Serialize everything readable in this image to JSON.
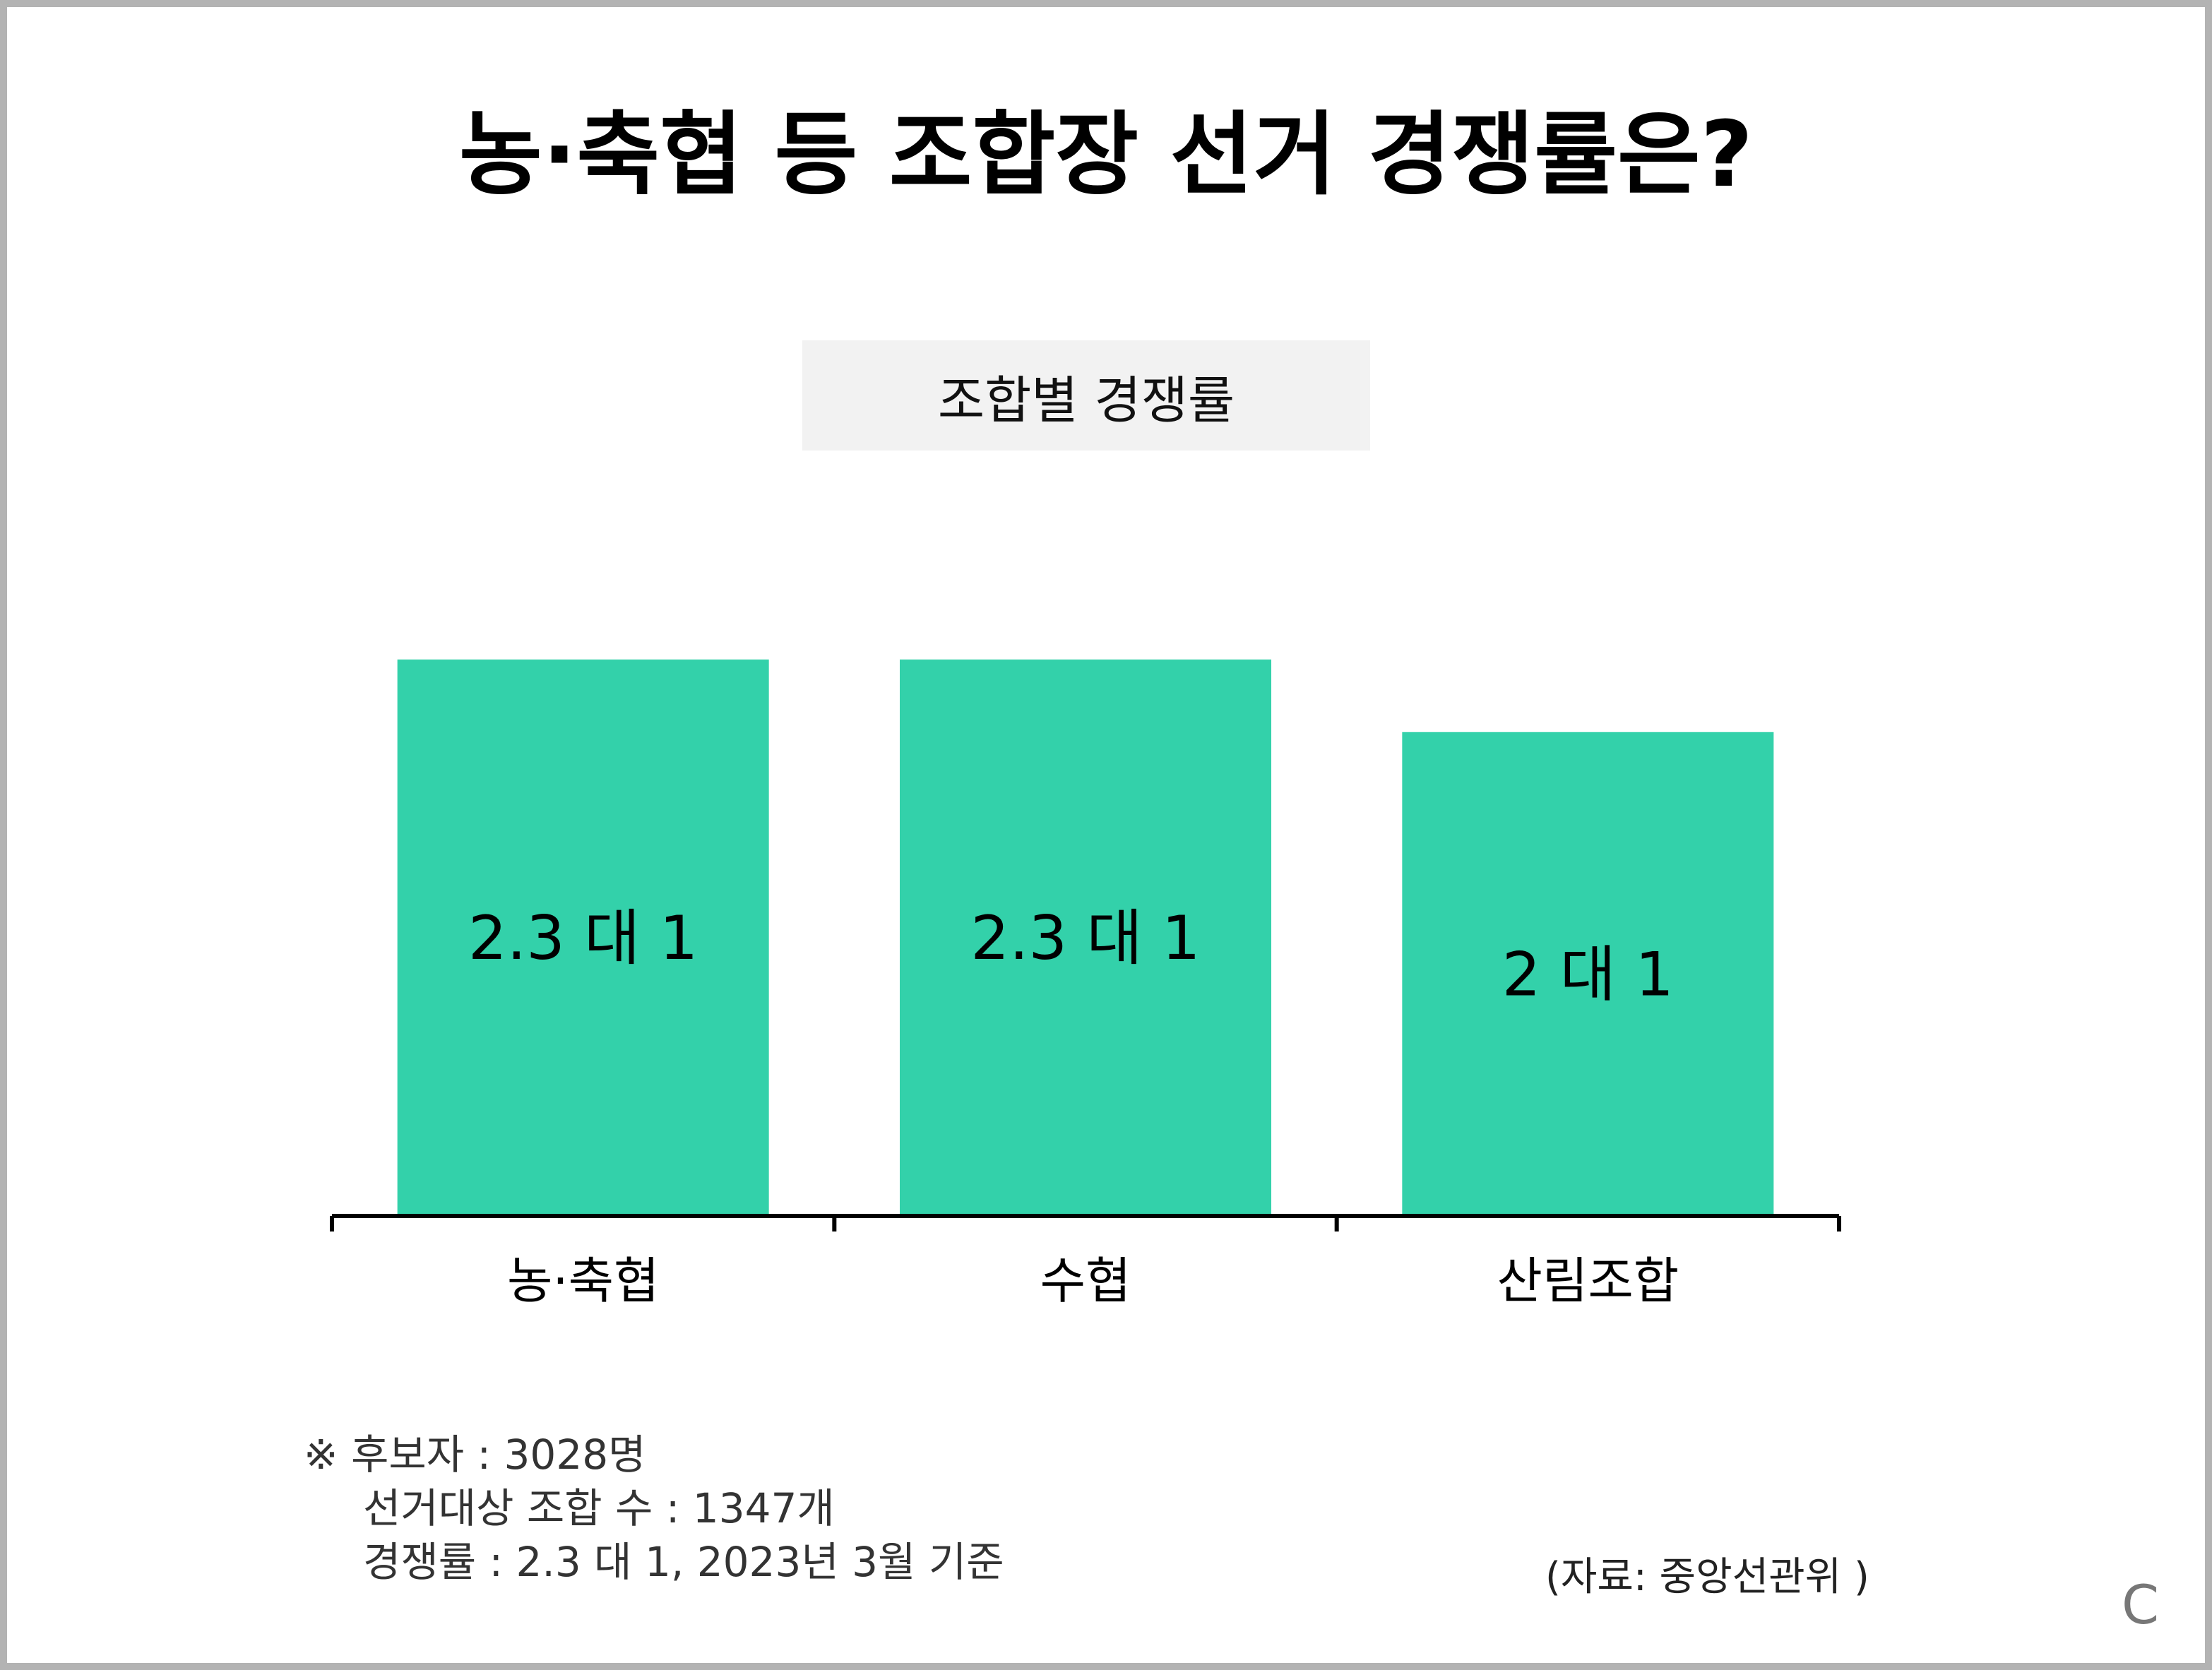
{
  "title": "농·축협 등 조합장 선거 경쟁률은?",
  "chart_data": {
    "type": "bar",
    "title": "조합별 경쟁률",
    "categories": [
      "농·축협",
      "수협",
      "산림조합"
    ],
    "values": [
      2.3,
      2.3,
      2
    ],
    "data_labels": [
      "2.3 대 1",
      "2.3 대 1",
      "2 대 1"
    ],
    "bar_color": "#33d1aa",
    "xlabel": "",
    "ylabel": "",
    "grid": false,
    "legend": "none"
  },
  "notes": {
    "line1": "※ 후보자 : 3028명",
    "line2": "선거대상 조합 수 : 1347개",
    "line3": "경쟁률 : 2.3 대 1,  2023년 3월 기준"
  },
  "source": "(자료: 중앙선관위 )",
  "corner_mark": "C",
  "colors": {
    "border": "#b3b3b3",
    "subtitle_bg": "#f2f2f2"
  }
}
